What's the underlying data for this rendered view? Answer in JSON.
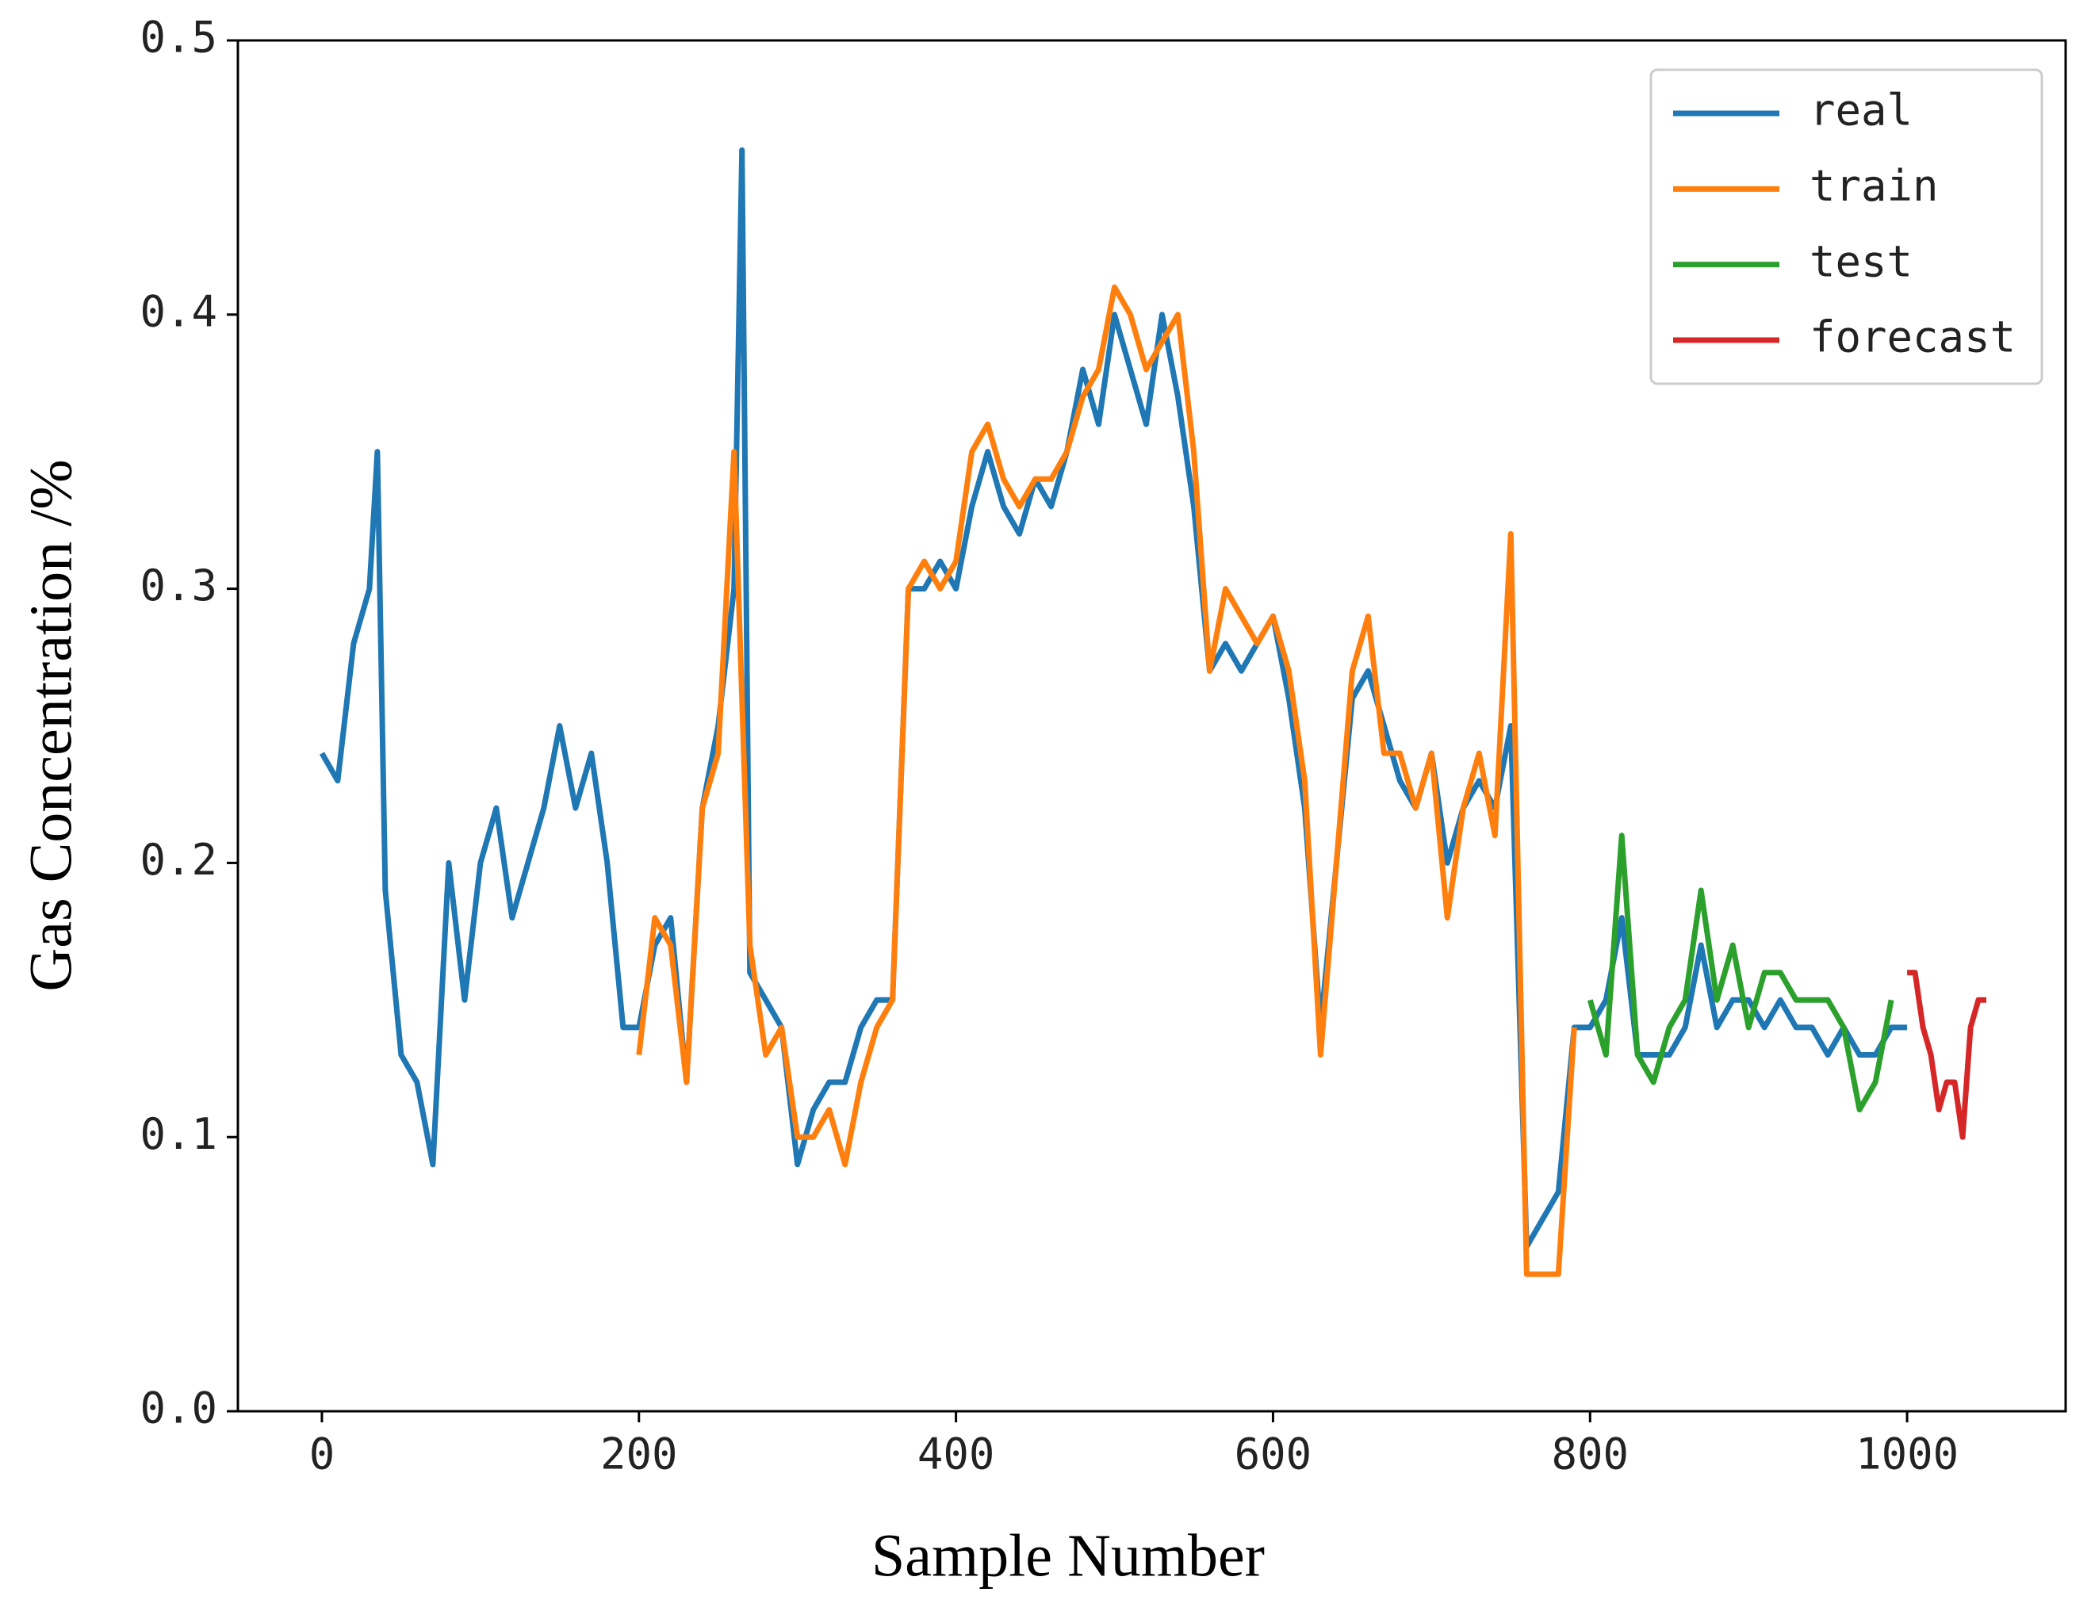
{
  "chart_data": {
    "type": "line",
    "xlabel": "Sample Number",
    "ylabel": "Gas Concentration /%",
    "xlim": [
      -53,
      1100
    ],
    "ylim": [
      0,
      0.5
    ],
    "xticks": [
      0,
      200,
      400,
      600,
      800,
      1000
    ],
    "yticks": [
      {
        "value": 0,
        "label": "0.0"
      },
      0.1,
      0.2,
      0.3,
      0.4,
      0.5
    ],
    "legend": "upper right",
    "series": [
      {
        "name": "real",
        "color": "#1f77b4",
        "x": [
          0,
          10,
          20,
          30,
          35,
          40,
          50,
          60,
          70,
          80,
          90,
          100,
          110,
          120,
          130,
          140,
          150,
          160,
          170,
          180,
          190,
          200,
          210,
          220,
          230,
          240,
          250,
          260,
          265,
          270,
          280,
          290,
          300,
          310,
          320,
          330,
          340,
          350,
          360,
          370,
          380,
          390,
          400,
          410,
          420,
          430,
          440,
          450,
          460,
          470,
          480,
          490,
          500,
          510,
          520,
          530,
          540,
          550,
          560,
          570,
          580,
          590,
          600,
          610,
          620,
          630,
          640,
          650,
          660,
          670,
          680,
          690,
          700,
          710,
          720,
          730,
          740,
          750,
          760,
          770,
          780,
          790,
          800,
          810,
          820,
          830,
          840,
          850,
          860,
          870,
          880,
          890,
          900,
          910,
          920,
          930,
          940,
          950,
          960,
          970,
          980,
          990,
          1000
        ],
        "values": [
          0.24,
          0.23,
          0.28,
          0.3,
          0.35,
          0.19,
          0.13,
          0.12,
          0.09,
          0.2,
          0.15,
          0.2,
          0.22,
          0.18,
          0.2,
          0.22,
          0.25,
          0.22,
          0.24,
          0.2,
          0.14,
          0.14,
          0.17,
          0.18,
          0.12,
          0.22,
          0.25,
          0.3,
          0.46,
          0.16,
          0.15,
          0.14,
          0.09,
          0.11,
          0.12,
          0.12,
          0.14,
          0.15,
          0.15,
          0.3,
          0.3,
          0.31,
          0.3,
          0.33,
          0.35,
          0.33,
          0.32,
          0.34,
          0.33,
          0.35,
          0.38,
          0.36,
          0.4,
          0.38,
          0.36,
          0.4,
          0.37,
          0.33,
          0.27,
          0.28,
          0.27,
          0.28,
          0.29,
          0.26,
          0.22,
          0.14,
          0.2,
          0.26,
          0.27,
          0.25,
          0.23,
          0.22,
          0.24,
          0.2,
          0.22,
          0.23,
          0.22,
          0.25,
          0.06,
          0.07,
          0.08,
          0.14,
          0.14,
          0.15,
          0.18,
          0.13,
          0.13,
          0.13,
          0.14,
          0.17,
          0.14,
          0.15,
          0.15,
          0.14,
          0.15,
          0.14,
          0.14,
          0.13,
          0.14,
          0.13,
          0.13,
          0.14,
          0.14
        ]
      },
      {
        "name": "train",
        "color": "#ff7f0e",
        "x": [
          200,
          210,
          220,
          230,
          240,
          250,
          260,
          270,
          280,
          290,
          300,
          310,
          320,
          330,
          340,
          350,
          360,
          370,
          380,
          390,
          400,
          410,
          420,
          430,
          440,
          450,
          460,
          470,
          480,
          490,
          500,
          510,
          520,
          530,
          540,
          550,
          560,
          570,
          580,
          590,
          600,
          610,
          620,
          630,
          640,
          650,
          660,
          670,
          680,
          690,
          700,
          710,
          720,
          730,
          740,
          750,
          760,
          770,
          780,
          790
        ],
        "values": [
          0.13,
          0.18,
          0.17,
          0.12,
          0.22,
          0.24,
          0.35,
          0.17,
          0.13,
          0.14,
          0.1,
          0.1,
          0.11,
          0.09,
          0.12,
          0.14,
          0.15,
          0.3,
          0.31,
          0.3,
          0.31,
          0.35,
          0.36,
          0.34,
          0.33,
          0.34,
          0.34,
          0.35,
          0.37,
          0.38,
          0.41,
          0.4,
          0.38,
          0.39,
          0.4,
          0.35,
          0.27,
          0.3,
          0.29,
          0.28,
          0.29,
          0.27,
          0.23,
          0.13,
          0.2,
          0.27,
          0.29,
          0.24,
          0.24,
          0.22,
          0.24,
          0.18,
          0.22,
          0.24,
          0.21,
          0.32,
          0.05,
          0.05,
          0.05,
          0.14
        ]
      },
      {
        "name": "test",
        "color": "#2ca02c",
        "x": [
          800,
          810,
          820,
          830,
          840,
          850,
          860,
          870,
          880,
          890,
          900,
          910,
          920,
          930,
          940,
          950,
          960,
          970,
          980,
          990
        ],
        "values": [
          0.15,
          0.13,
          0.21,
          0.13,
          0.12,
          0.14,
          0.15,
          0.19,
          0.15,
          0.17,
          0.14,
          0.16,
          0.16,
          0.15,
          0.15,
          0.15,
          0.14,
          0.11,
          0.12,
          0.15
        ]
      },
      {
        "name": "forecast",
        "color": "#d62728",
        "x": [
          1000,
          1005,
          1010,
          1015,
          1020,
          1025,
          1030,
          1035,
          1040,
          1045,
          1050
        ],
        "values": [
          0.16,
          0.16,
          0.14,
          0.13,
          0.11,
          0.12,
          0.12,
          0.1,
          0.14,
          0.15,
          0.15
        ]
      }
    ]
  }
}
